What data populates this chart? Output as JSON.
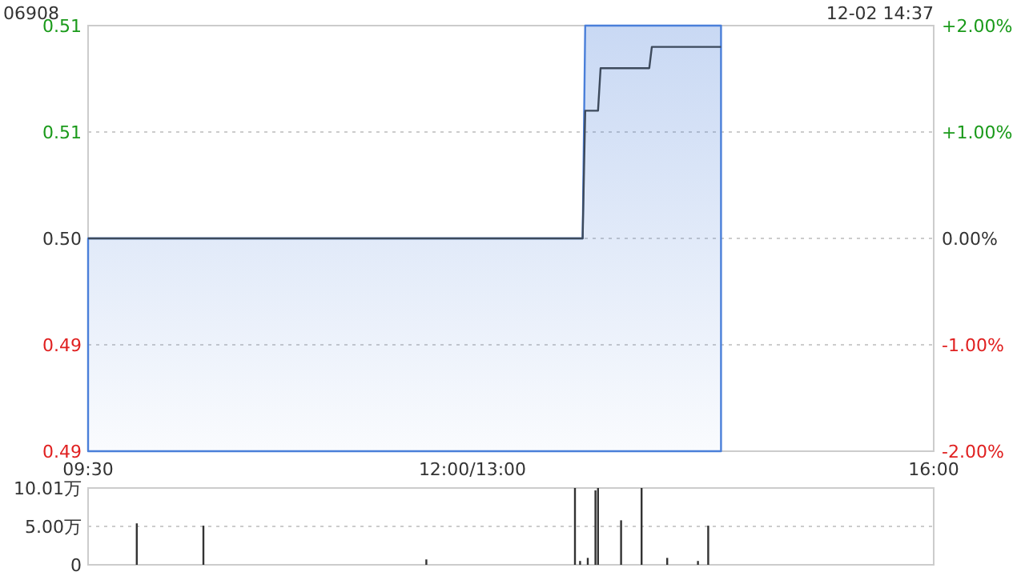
{
  "chart_data": [
    {
      "type": "line",
      "title": "06908",
      "annotations": [
        "12-02 14:37"
      ],
      "categories": [
        "09:30",
        null,
        null,
        null,
        null,
        null,
        null,
        null,
        null,
        null,
        null,
        null,
        null,
        null,
        null,
        null,
        null,
        null,
        null,
        null,
        null,
        null,
        null,
        null,
        null,
        null,
        null,
        null,
        null,
        null,
        null,
        null,
        null,
        null,
        null,
        null,
        null,
        null,
        null,
        null,
        null,
        null,
        null,
        null,
        null,
        null,
        null,
        null,
        null,
        null,
        null,
        null,
        null,
        null,
        null,
        null,
        null,
        null,
        null,
        null,
        null,
        null,
        null,
        null,
        null,
        null,
        null,
        null,
        null,
        null,
        null,
        null,
        null,
        null,
        null,
        null,
        null,
        null,
        null,
        null,
        null,
        null,
        null,
        null,
        null,
        null,
        null,
        null,
        null,
        null,
        null,
        null,
        null,
        null,
        null,
        null,
        null,
        null,
        null,
        null,
        null,
        null,
        null,
        null,
        null,
        null,
        null,
        null,
        null,
        null,
        null,
        null,
        null,
        null,
        null,
        null,
        null,
        null,
        null,
        null,
        null,
        null,
        null,
        null,
        null,
        null,
        null,
        null,
        null,
        null,
        null,
        null,
        null,
        null,
        null,
        null,
        null,
        null,
        null,
        null,
        null,
        null,
        null,
        null,
        null,
        null,
        null,
        null,
        null,
        null,
        "12:00/13:00",
        null,
        null,
        null,
        null,
        null,
        null,
        null,
        null,
        null,
        null,
        null,
        null,
        null,
        null,
        null,
        null,
        null,
        null,
        null,
        null,
        null,
        null,
        null,
        null,
        null,
        null,
        null,
        null,
        null,
        null,
        null,
        null,
        null,
        null,
        null,
        null,
        null,
        null,
        null,
        null,
        null,
        null,
        null,
        null,
        null,
        null,
        null,
        null,
        null,
        null,
        null,
        null,
        null,
        null,
        null,
        null,
        null,
        null,
        null,
        null,
        null,
        null,
        null,
        null,
        null,
        null,
        null,
        null,
        null,
        null,
        null,
        null,
        null,
        null,
        null,
        null,
        null,
        null,
        null,
        null,
        null,
        null,
        null,
        null,
        null,
        null,
        null,
        null,
        null,
        null,
        null,
        null,
        null,
        null,
        null,
        null,
        null,
        null,
        null,
        null,
        null,
        null,
        null,
        null,
        null,
        null,
        null,
        null,
        null,
        null,
        null,
        null,
        null,
        null,
        null,
        null,
        null,
        null,
        null,
        null,
        null,
        null,
        null,
        null,
        null,
        null,
        null,
        null,
        null,
        null,
        null,
        null,
        null,
        null,
        null,
        null,
        null,
        null,
        null,
        null,
        null,
        null,
        null,
        null,
        null,
        null,
        null,
        null,
        null,
        null,
        null,
        null,
        null,
        null,
        null,
        null,
        null,
        null,
        null,
        null,
        null,
        null,
        null,
        null,
        null,
        null,
        null,
        null,
        null,
        null,
        null,
        null,
        null,
        null,
        null,
        null,
        null,
        null,
        null,
        "16:00"
      ],
      "ylim": [
        0.49,
        0.51
      ],
      "yticks": [
        {
          "value": 0.49,
          "label": "0.49"
        },
        {
          "value": 0.495,
          "label": "0.49"
        },
        {
          "value": 0.5,
          "label": "0.50"
        },
        {
          "value": 0.505,
          "label": "0.51"
        },
        {
          "value": 0.51,
          "label": "0.51"
        }
      ],
      "y2lim": [
        -2,
        2
      ],
      "y2ticks": [
        {
          "value": -2,
          "label": "-2.00%"
        },
        {
          "value": -1,
          "label": "-1.00%"
        },
        {
          "value": 0,
          "label": "0.00%"
        },
        {
          "value": 1,
          "label": "+1.00%"
        },
        {
          "value": 2,
          "label": "+2.00%"
        }
      ],
      "grid": "y",
      "series": [
        {
          "type": "area",
          "color": "#4a7fd9",
          "values": [
            0.5,
            0.5,
            0.5,
            0.5,
            0.5,
            0.5,
            0.5,
            0.5,
            0.5,
            0.5,
            0.5,
            0.5,
            0.5,
            0.5,
            0.5,
            0.5,
            0.5,
            0.5,
            0.5,
            0.5,
            0.5,
            0.5,
            0.5,
            0.5,
            0.5,
            0.5,
            0.5,
            0.5,
            0.5,
            0.5,
            0.5,
            0.5,
            0.5,
            0.5,
            0.5,
            0.5,
            0.5,
            0.5,
            0.5,
            0.5,
            0.5,
            0.5,
            0.5,
            0.5,
            0.5,
            0.5,
            0.5,
            0.5,
            0.5,
            0.5,
            0.5,
            0.5,
            0.5,
            0.5,
            0.5,
            0.5,
            0.5,
            0.5,
            0.5,
            0.5,
            0.5,
            0.5,
            0.5,
            0.5,
            0.5,
            0.5,
            0.5,
            0.5,
            0.5,
            0.5,
            0.5,
            0.5,
            0.5,
            0.5,
            0.5,
            0.5,
            0.5,
            0.5,
            0.5,
            0.5,
            0.5,
            0.5,
            0.5,
            0.5,
            0.5,
            0.5,
            0.5,
            0.5,
            0.5,
            0.5,
            0.5,
            0.5,
            0.5,
            0.5,
            0.5,
            0.5,
            0.5,
            0.5,
            0.5,
            0.5,
            0.5,
            0.5,
            0.5,
            0.5,
            0.5,
            0.5,
            0.5,
            0.5,
            0.5,
            0.5,
            0.5,
            0.5,
            0.5,
            0.5,
            0.5,
            0.5,
            0.5,
            0.5,
            0.5,
            0.5,
            0.5,
            0.5,
            0.5,
            0.5,
            0.5,
            0.5,
            0.5,
            0.5,
            0.5,
            0.5,
            0.5,
            0.5,
            0.5,
            0.5,
            0.5,
            0.5,
            0.5,
            0.5,
            0.5,
            0.5,
            0.5,
            0.5,
            0.5,
            0.5,
            0.5,
            0.5,
            0.5,
            0.5,
            0.5,
            0.5,
            0.5,
            0.5,
            0.5,
            0.5,
            0.5,
            0.5,
            0.5,
            0.5,
            0.5,
            0.5,
            0.5,
            0.5,
            0.5,
            0.5,
            0.5,
            0.5,
            0.5,
            0.5,
            0.5,
            0.5,
            0.5,
            0.5,
            0.5,
            0.5,
            0.5,
            0.5,
            0.5,
            0.5,
            0.5,
            0.5,
            0.5,
            0.5,
            0.5,
            0.5,
            0.5,
            0.5,
            0.5,
            0.5,
            0.5,
            0.5,
            0.5,
            0.5,
            0.5,
            0.5,
            0.51,
            0.51,
            0.51,
            0.51,
            0.51,
            0.51,
            0.51,
            0.51,
            0.51,
            0.51,
            0.51,
            0.51,
            0.51,
            0.51,
            0.51,
            0.51,
            0.51,
            0.51,
            0.51,
            0.51,
            0.51,
            0.51,
            0.51,
            0.51,
            0.51,
            0.51,
            0.51,
            0.51,
            0.51,
            0.51,
            0.51,
            0.51,
            0.51,
            0.51,
            0.51,
            0.51,
            0.51,
            0.51,
            0.51,
            0.51,
            0.51,
            0.51,
            0.51,
            0.51,
            0.51,
            0.51,
            0.51,
            0.51,
            0.51,
            0.51,
            0.51,
            0.51,
            0.51,
            0.51,
            null,
            null,
            null,
            null,
            null,
            null,
            null,
            null,
            null,
            null,
            null,
            null,
            null,
            null,
            null,
            null,
            null,
            null,
            null,
            null,
            null,
            null,
            null,
            null,
            null,
            null,
            null,
            null,
            null,
            null,
            null,
            null,
            null,
            null,
            null,
            null,
            null,
            null,
            null,
            null,
            null,
            null,
            null,
            null,
            null,
            null,
            null,
            null,
            null,
            null,
            null,
            null,
            null,
            null,
            null,
            null,
            null,
            null,
            null,
            null,
            null,
            null,
            null,
            null,
            null,
            null,
            null,
            null,
            null,
            null,
            null,
            null,
            null,
            null,
            null,
            null,
            null,
            null,
            null,
            null,
            null,
            null,
            null
          ]
        },
        {
          "color": "#3d4a5c",
          "values": [
            0.5,
            0.5,
            0.5,
            0.5,
            0.5,
            0.5,
            0.5,
            0.5,
            0.5,
            0.5,
            0.5,
            0.5,
            0.5,
            0.5,
            0.5,
            0.5,
            0.5,
            0.5,
            0.5,
            0.5,
            0.5,
            0.5,
            0.5,
            0.5,
            0.5,
            0.5,
            0.5,
            0.5,
            0.5,
            0.5,
            0.5,
            0.5,
            0.5,
            0.5,
            0.5,
            0.5,
            0.5,
            0.5,
            0.5,
            0.5,
            0.5,
            0.5,
            0.5,
            0.5,
            0.5,
            0.5,
            0.5,
            0.5,
            0.5,
            0.5,
            0.5,
            0.5,
            0.5,
            0.5,
            0.5,
            0.5,
            0.5,
            0.5,
            0.5,
            0.5,
            0.5,
            0.5,
            0.5,
            0.5,
            0.5,
            0.5,
            0.5,
            0.5,
            0.5,
            0.5,
            0.5,
            0.5,
            0.5,
            0.5,
            0.5,
            0.5,
            0.5,
            0.5,
            0.5,
            0.5,
            0.5,
            0.5,
            0.5,
            0.5,
            0.5,
            0.5,
            0.5,
            0.5,
            0.5,
            0.5,
            0.5,
            0.5,
            0.5,
            0.5,
            0.5,
            0.5,
            0.5,
            0.5,
            0.5,
            0.5,
            0.5,
            0.5,
            0.5,
            0.5,
            0.5,
            0.5,
            0.5,
            0.5,
            0.5,
            0.5,
            0.5,
            0.5,
            0.5,
            0.5,
            0.5,
            0.5,
            0.5,
            0.5,
            0.5,
            0.5,
            0.5,
            0.5,
            0.5,
            0.5,
            0.5,
            0.5,
            0.5,
            0.5,
            0.5,
            0.5,
            0.5,
            0.5,
            0.5,
            0.5,
            0.5,
            0.5,
            0.5,
            0.5,
            0.5,
            0.5,
            0.5,
            0.5,
            0.5,
            0.5,
            0.5,
            0.5,
            0.5,
            0.5,
            0.5,
            0.5,
            0.5,
            0.5,
            0.5,
            0.5,
            0.5,
            0.5,
            0.5,
            0.5,
            0.5,
            0.5,
            0.5,
            0.5,
            0.5,
            0.5,
            0.5,
            0.5,
            0.5,
            0.5,
            0.5,
            0.5,
            0.5,
            0.5,
            0.5,
            0.5,
            0.5,
            0.5,
            0.5,
            0.5,
            0.5,
            0.5,
            0.5,
            0.5,
            0.5,
            0.5,
            0.5,
            0.5,
            0.5,
            0.5,
            0.5,
            0.5,
            0.5,
            0.5,
            0.5,
            0.5,
            0.506,
            0.506,
            0.506,
            0.506,
            0.506,
            0.506,
            0.508,
            0.508,
            0.508,
            0.508,
            0.508,
            0.508,
            0.508,
            0.508,
            0.508,
            0.508,
            0.508,
            0.508,
            0.508,
            0.508,
            0.508,
            0.508,
            0.508,
            0.508,
            0.508,
            0.508,
            0.509,
            0.509,
            0.509,
            0.509,
            0.509,
            0.509,
            0.509,
            0.509,
            0.509,
            0.509,
            0.509,
            0.509,
            0.509,
            0.509,
            0.509,
            0.509,
            0.509,
            0.509,
            0.509,
            0.509,
            0.509,
            0.509,
            0.509,
            0.509,
            0.509,
            0.509,
            0.509,
            0.509,
            null,
            null,
            null,
            null,
            null,
            null,
            null,
            null,
            null,
            null,
            null,
            null,
            null,
            null,
            null,
            null,
            null,
            null,
            null,
            null,
            null,
            null,
            null,
            null,
            null,
            null,
            null,
            null,
            null,
            null,
            null,
            null,
            null,
            null,
            null,
            null,
            null,
            null,
            null,
            null,
            null,
            null,
            null,
            null,
            null,
            null,
            null,
            null,
            null,
            null,
            null,
            null,
            null,
            null,
            null,
            null,
            null,
            null,
            null,
            null,
            null,
            null,
            null,
            null,
            null,
            null,
            null,
            null,
            null,
            null,
            null,
            null,
            null,
            null,
            null,
            null,
            null,
            null,
            null,
            null,
            null,
            null,
            null
          ]
        }
      ]
    },
    {
      "type": "bar",
      "tick_labels": "y",
      "grid": "y",
      "color": "#333333",
      "categories": [
        null,
        null,
        null,
        null,
        null,
        null,
        null,
        null,
        null,
        null,
        null,
        null,
        null,
        null,
        null,
        null,
        null,
        null,
        null,
        null,
        null,
        null,
        null,
        null,
        null,
        null,
        null,
        null,
        null,
        null,
        null,
        null,
        null,
        null,
        null,
        null,
        null,
        null,
        null,
        null,
        null,
        null,
        null,
        null,
        null,
        null,
        null,
        null,
        null,
        null,
        null,
        null,
        null,
        null,
        null,
        null,
        null,
        null,
        null,
        null,
        null,
        null,
        null,
        null,
        null,
        null,
        null,
        null,
        null,
        null,
        null,
        null,
        null,
        null,
        null,
        null,
        null,
        null,
        null,
        null,
        null,
        null,
        null,
        null,
        null,
        null,
        null,
        null,
        null,
        null,
        null,
        null,
        null,
        null,
        null,
        null,
        null,
        null,
        null,
        null,
        null,
        null,
        null,
        null,
        null,
        null,
        null,
        null,
        null,
        null,
        null,
        null,
        null,
        null,
        null,
        null,
        null,
        null,
        null,
        null,
        null,
        null,
        null,
        null,
        null,
        null,
        null,
        null,
        null,
        null,
        null,
        null,
        null,
        null,
        null,
        null,
        null,
        null,
        null,
        null,
        null,
        null,
        null,
        null,
        null,
        null,
        null,
        null,
        null,
        null,
        null,
        null,
        null,
        null,
        null,
        null,
        null,
        null,
        null,
        null,
        null,
        null,
        null,
        null,
        null,
        null,
        null,
        null,
        null,
        null,
        null,
        null,
        null,
        null,
        null,
        null,
        null,
        null,
        null,
        null,
        null,
        null,
        null,
        null,
        null,
        null,
        null,
        null,
        null,
        null,
        null,
        null,
        null,
        null,
        null,
        null,
        null,
        null,
        null,
        null,
        null,
        null,
        null,
        null,
        null,
        null,
        null,
        null,
        null,
        null,
        null,
        null,
        null,
        null,
        null,
        null,
        null,
        null,
        null,
        null,
        null,
        null,
        null,
        null,
        null,
        null,
        null,
        null,
        null,
        null,
        null,
        null,
        null,
        null,
        null,
        null,
        null,
        null,
        null,
        null,
        null,
        null,
        null,
        null,
        null,
        null,
        null,
        null,
        null,
        null,
        null,
        null,
        null,
        null,
        null,
        null,
        null,
        null,
        null,
        null,
        null,
        null,
        null,
        null,
        null,
        null,
        null,
        null,
        null,
        null,
        null,
        null,
        null,
        null,
        null,
        null,
        null,
        null,
        null,
        null,
        null,
        null,
        null,
        null,
        null,
        null,
        null,
        null,
        null,
        null,
        null,
        null,
        null,
        null,
        null,
        null,
        null,
        null,
        null,
        null,
        null,
        null,
        null,
        null,
        null,
        null,
        null,
        null,
        null,
        null,
        null,
        null,
        null,
        null,
        null,
        null,
        null,
        null,
        null,
        null,
        null,
        null,
        null,
        null,
        null,
        null,
        null,
        null,
        null,
        null,
        null
      ],
      "ylim": [
        0,
        10.01
      ],
      "yticks": [
        {
          "value": 0,
          "label": "0"
        },
        {
          "value": 5,
          "label": "5.00万"
        },
        {
          "value": 10.01,
          "label": "10.01万"
        }
      ],
      "values": [
        null,
        null,
        null,
        null,
        null,
        null,
        null,
        null,
        null,
        null,
        null,
        null,
        null,
        null,
        null,
        null,
        null,
        null,
        null,
        5.4,
        null,
        null,
        null,
        null,
        null,
        null,
        null,
        null,
        null,
        null,
        null,
        null,
        null,
        null,
        null,
        null,
        null,
        null,
        null,
        null,
        null,
        null,
        null,
        null,
        null,
        5.1,
        null,
        null,
        null,
        null,
        null,
        null,
        null,
        null,
        null,
        null,
        null,
        null,
        null,
        null,
        null,
        null,
        null,
        null,
        null,
        null,
        null,
        null,
        null,
        null,
        null,
        null,
        null,
        null,
        null,
        null,
        null,
        null,
        null,
        null,
        null,
        null,
        null,
        null,
        null,
        null,
        null,
        null,
        null,
        null,
        null,
        null,
        null,
        null,
        null,
        null,
        null,
        null,
        null,
        null,
        null,
        null,
        null,
        null,
        null,
        null,
        null,
        null,
        null,
        null,
        null,
        null,
        null,
        null,
        null,
        null,
        null,
        null,
        null,
        null,
        null,
        null,
        null,
        null,
        null,
        null,
        null,
        null,
        null,
        null,
        null,
        null,
        0.7,
        null,
        null,
        null,
        null,
        null,
        null,
        null,
        null,
        null,
        null,
        null,
        null,
        null,
        null,
        null,
        null,
        null,
        null,
        null,
        null,
        null,
        null,
        null,
        null,
        null,
        null,
        null,
        null,
        null,
        null,
        null,
        null,
        null,
        null,
        null,
        null,
        null,
        null,
        null,
        null,
        null,
        null,
        null,
        null,
        null,
        null,
        null,
        null,
        null,
        null,
        null,
        null,
        null,
        null,
        null,
        null,
        null,
        10.01,
        null,
        0.5,
        null,
        null,
        0.9,
        null,
        null,
        9.7,
        10.01,
        null,
        null,
        null,
        null,
        null,
        null,
        null,
        null,
        5.8,
        null,
        null,
        null,
        null,
        null,
        null,
        null,
        10.01,
        null,
        null,
        null,
        null,
        null,
        null,
        null,
        null,
        null,
        0.9,
        null,
        null,
        null,
        null,
        null,
        null,
        null,
        null,
        null,
        null,
        null,
        0.5,
        null,
        null,
        null,
        5.1,
        null,
        null,
        null,
        null,
        null,
        null,
        null,
        null,
        null,
        null,
        null,
        null,
        null,
        null,
        null,
        null,
        null,
        null,
        null,
        null,
        null,
        null,
        null,
        null,
        null,
        null,
        null,
        null,
        null,
        null,
        null,
        null,
        null,
        null,
        null,
        null,
        null,
        null,
        null,
        null,
        null,
        null,
        null,
        null,
        null,
        null,
        null,
        null,
        null,
        null,
        null,
        null,
        null,
        null,
        null,
        null,
        null,
        null,
        null,
        null,
        null,
        null,
        null,
        null,
        null,
        null,
        null,
        null,
        null,
        null,
        null,
        null,
        null,
        null,
        null,
        null,
        null,
        null,
        null,
        null,
        null,
        null,
        null,
        null,
        null,
        null,
        null,
        null
      ]
    }
  ]
}
